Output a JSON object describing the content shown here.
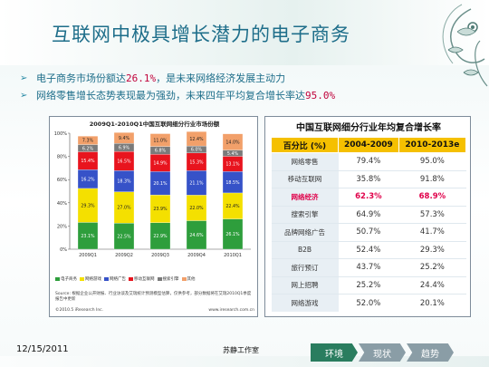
{
  "slide": {
    "title": "互联网中极具增长潜力的电子商务",
    "bullets": [
      {
        "text": "电子商务市场份额达",
        "highlight": "26.1%",
        "tail": "，是未来网络经济发展主动力"
      },
      {
        "text": "网络零售增长态势表现最为强劲，未来四年平均复合增长率达",
        "highlight": "95.0%",
        "tail": ""
      }
    ],
    "date": "12/15/2011",
    "author": "苏静工作室",
    "nav_tabs": [
      "环境",
      "现状",
      "趋势"
    ],
    "active_tab": "环境"
  },
  "chart_data": [
    {
      "type": "bar",
      "stacked": true,
      "title": "2009Q1-2010Q1中国互联网细分行业市场份额",
      "categories": [
        "2009Q1",
        "2009Q2",
        "2009Q3",
        "2009Q4",
        "2010Q1"
      ],
      "yticks": [
        "0%",
        "20%",
        "40%",
        "60%",
        "80%",
        "100%"
      ],
      "ylim": [
        0,
        100
      ],
      "series": [
        {
          "name": "电子商务",
          "color": "#2e9e3c",
          "values": [
            23.1,
            22.5,
            22.9,
            24.6,
            26.1
          ]
        },
        {
          "name": "网络游戏",
          "color": "#f4e000",
          "values": [
            29.3,
            27.0,
            23.9,
            22.0,
            22.4
          ]
        },
        {
          "name": "网络广告",
          "color": "#3652c8",
          "values": [
            16.2,
            18.3,
            20.1,
            21.1,
            18.5
          ]
        },
        {
          "name": "移动互联网",
          "color": "#e8141e",
          "values": [
            15.4,
            16.5,
            14.9,
            15.3,
            13.1
          ]
        },
        {
          "name": "搜索引擎",
          "color": "#7a7a7a",
          "values": [
            6.2,
            6.9,
            6.8,
            6.0,
            5.4
          ]
        },
        {
          "name": "其他",
          "color": "#f2a06a",
          "values": [
            7.3,
            9.4,
            11.0,
            12.4,
            14.0
          ]
        }
      ],
      "source": "Source: 根据企业公开财报、行业访谈及艾瑞统计预测模型估算，仅供参考，部分数据将在艾瑞2010Q1季度报告中更新",
      "copyright": "©2010.5 iResearch Inc.",
      "website": "www.iresearch.com.cn"
    },
    {
      "type": "table",
      "title": "中国互联网细分行业年均复合增长率",
      "columns": [
        "百分比 (%)",
        "2004-2009",
        "2010-2013e"
      ],
      "rows": [
        {
          "label": "网络零售",
          "v1": "79.4%",
          "v2": "95.0%",
          "highlight": false
        },
        {
          "label": "移动互联网",
          "v1": "35.8%",
          "v2": "91.8%",
          "highlight": false
        },
        {
          "label": "网络经济",
          "v1": "62.3%",
          "v2": "68.9%",
          "highlight": true
        },
        {
          "label": "搜索引擎",
          "v1": "64.9%",
          "v2": "57.3%",
          "highlight": false
        },
        {
          "label": "品牌网络广告",
          "v1": "50.7%",
          "v2": "41.7%",
          "highlight": false
        },
        {
          "label": "B2B",
          "v1": "52.4%",
          "v2": "29.3%",
          "highlight": false
        },
        {
          "label": "旅行预订",
          "v1": "43.7%",
          "v2": "25.2%",
          "highlight": false
        },
        {
          "label": "网上招聘",
          "v1": "25.2%",
          "v2": "24.4%",
          "highlight": false
        },
        {
          "label": "网络游戏",
          "v1": "52.0%",
          "v2": "20.1%",
          "highlight": false
        }
      ]
    }
  ]
}
